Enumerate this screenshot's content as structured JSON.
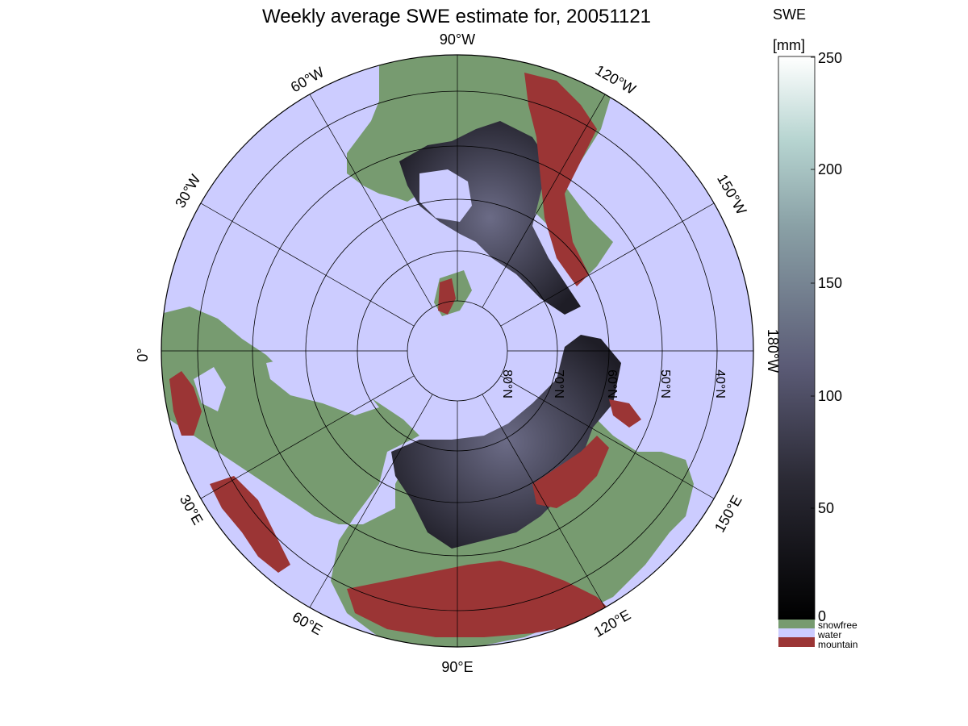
{
  "title": "Weekly average SWE estimate for, 20051121",
  "longitude_labels": [
    {
      "id": "90w",
      "text": "90°W"
    },
    {
      "id": "60w",
      "text": "60°W"
    },
    {
      "id": "120w",
      "text": "120°W"
    },
    {
      "id": "30w",
      "text": "30°W"
    },
    {
      "id": "150w",
      "text": "150°W"
    },
    {
      "id": "0",
      "text": "0°"
    },
    {
      "id": "180w",
      "text": "180°W"
    },
    {
      "id": "30e",
      "text": "30°E"
    },
    {
      "id": "150e",
      "text": "150°E"
    },
    {
      "id": "60e",
      "text": "60°E"
    },
    {
      "id": "120e",
      "text": "120°E"
    },
    {
      "id": "90e",
      "text": "90°E"
    }
  ],
  "latitude_labels": [
    {
      "id": "80n",
      "text": "80°N"
    },
    {
      "id": "70n",
      "text": "70°N"
    },
    {
      "id": "60n",
      "text": "60°N"
    },
    {
      "id": "50n",
      "text": "50°N"
    },
    {
      "id": "40n",
      "text": "40°N"
    }
  ],
  "colorbar": {
    "title_line1": "SWE",
    "title_line2": "[mm]",
    "range": [
      0,
      250
    ],
    "ticks": [
      "0",
      "50",
      "100",
      "150",
      "200",
      "250"
    ]
  },
  "legend": [
    {
      "label": "snowfree",
      "color": "#779b70"
    },
    {
      "label": "water",
      "color": "#ccccff"
    },
    {
      "label": "mountain",
      "color": "#9b3535"
    }
  ],
  "colors": {
    "water": "#ccccff",
    "land": "#779b70",
    "mountain": "#9b3535",
    "snow_low": "#17161d",
    "snow_mid": "#55556e",
    "snow_high": "#ffffff"
  }
}
